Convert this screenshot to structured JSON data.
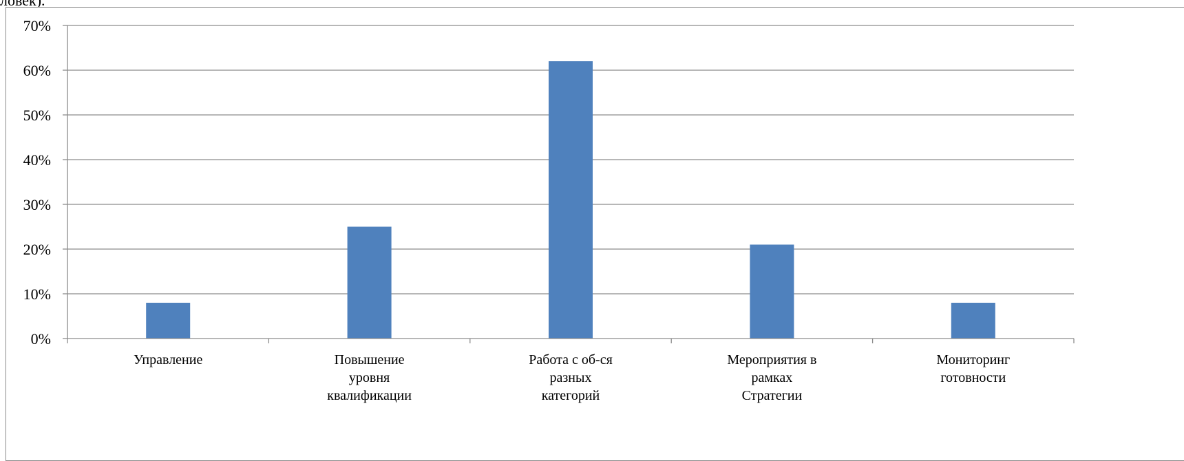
{
  "top_fragment": "ловек).",
  "colors": {
    "bar": "#4f81bd",
    "grid": "#8c8c8c",
    "axis": "#8c8c8c",
    "border": "#888888"
  },
  "chart_data": {
    "type": "bar",
    "title": "",
    "xlabel": "",
    "ylabel": "",
    "categories": [
      [
        "Управление"
      ],
      [
        "Повышение",
        "уровня",
        "квалификации"
      ],
      [
        "Работа с об-ся",
        "разных",
        "категорий"
      ],
      [
        "Мероприятия в",
        "рамках",
        "Стратегии"
      ],
      [
        "Мониторинг",
        "готовности"
      ]
    ],
    "values": [
      8,
      25,
      62,
      21,
      8
    ],
    "ylim": [
      0,
      70
    ],
    "yticks": [
      0,
      10,
      20,
      30,
      40,
      50,
      60,
      70
    ],
    "ytick_labels": [
      "0%",
      "10%",
      "20%",
      "30%",
      "40%",
      "50%",
      "60%",
      "70%"
    ],
    "grid": true,
    "legend": "none"
  }
}
